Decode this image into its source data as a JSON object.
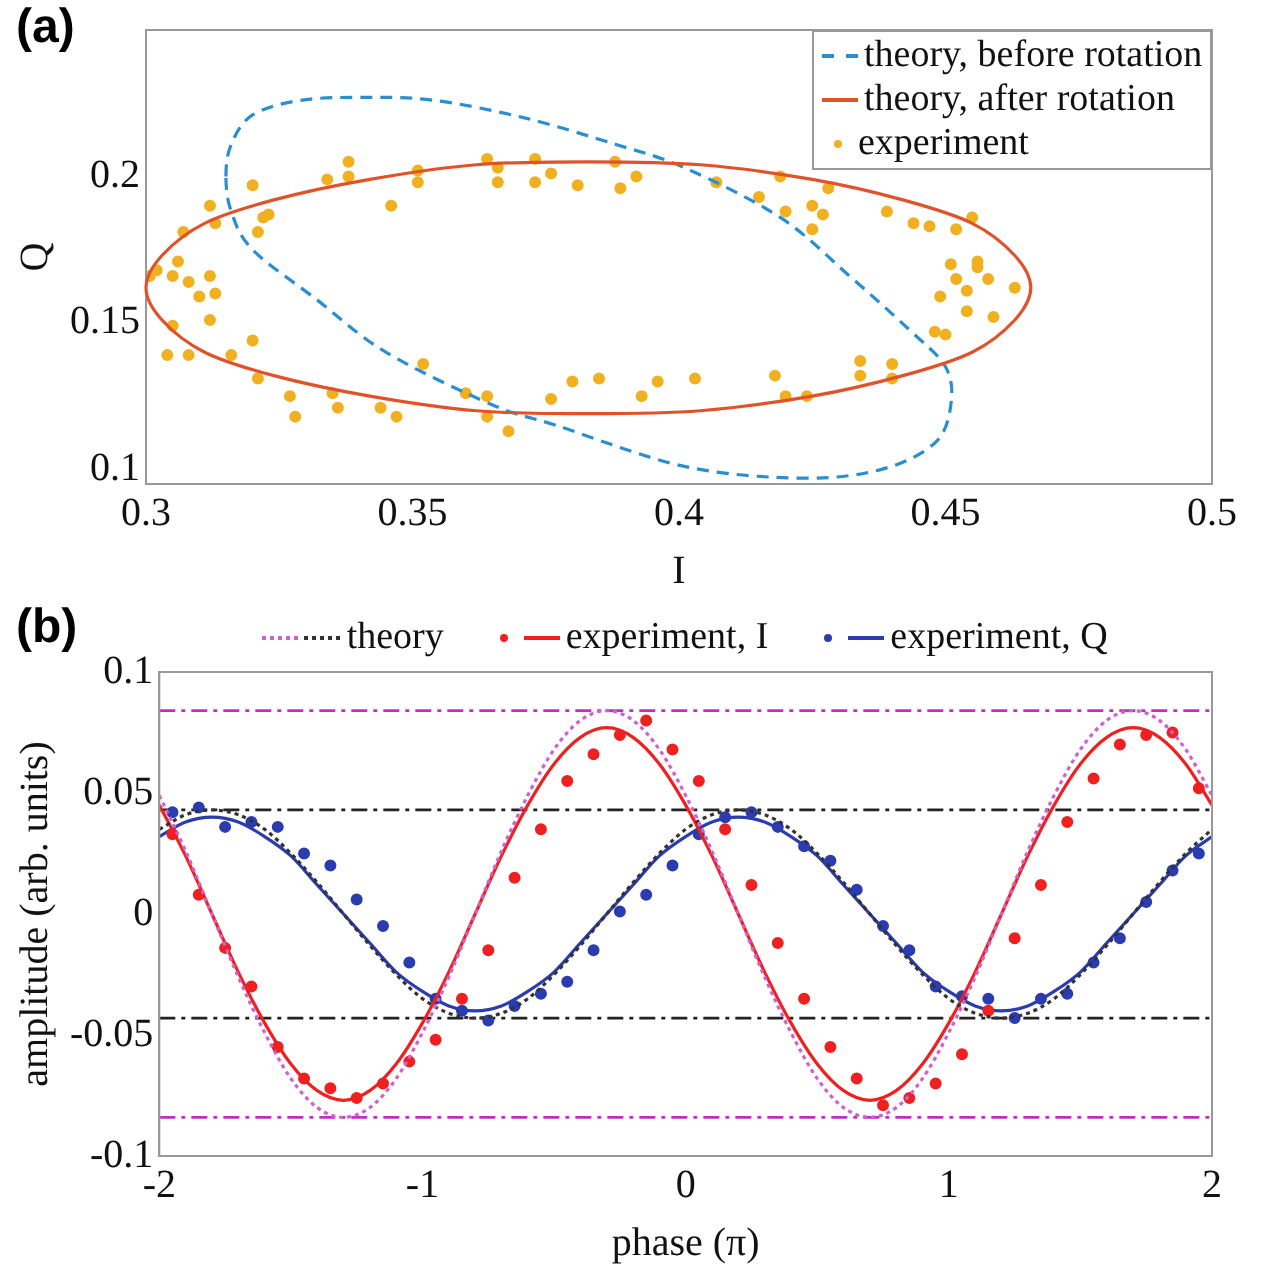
{
  "chart_data": [
    {
      "title": "(a)",
      "type": "scatter",
      "xlabel": "I",
      "ylabel": "Q",
      "annotations": [
        "theory, before rotation",
        "theory, after rotation"
      ],
      "xlim": [
        0.3,
        0.5
      ],
      "xticks": [
        0.3,
        0.35,
        0.4,
        0.45,
        0.5
      ],
      "ylim": [
        0.095,
        0.25
      ],
      "yticks": [
        0.1,
        0.15,
        0.2
      ],
      "legend": "top right",
      "series": [
        {
          "name": "experiment",
          "color": "#f0b020",
          "marker": "circle",
          "x": [
            0.3007,
            0.302,
            0.304,
            0.305,
            0.305,
            0.306,
            0.307,
            0.308,
            0.308,
            0.31,
            0.312,
            0.312,
            0.312,
            0.313,
            0.313,
            0.316,
            0.32,
            0.32,
            0.321,
            0.322,
            0.323,
            0.321,
            0.327,
            0.328,
            0.334,
            0.335,
            0.336,
            0.338,
            0.338,
            0.344,
            0.346,
            0.347,
            0.351,
            0.351,
            0.352,
            0.36,
            0.364,
            0.364,
            0.364,
            0.366,
            0.366,
            0.368,
            0.373,
            0.373,
            0.376,
            0.376,
            0.38,
            0.385,
            0.381,
            0.388,
            0.389,
            0.392,
            0.396,
            0.393,
            0.403,
            0.407,
            0.415,
            0.418,
            0.42,
            0.419,
            0.42,
            0.424,
            0.425,
            0.425,
            0.427,
            0.428,
            0.434,
            0.434,
            0.44,
            0.44,
            0.439,
            0.444,
            0.447,
            0.448,
            0.45,
            0.449,
            0.451,
            0.452,
            0.452,
            0.454,
            0.454,
            0.455,
            0.456,
            0.456,
            0.458,
            0.459,
            0.463
          ],
          "values": [
            0.166,
            0.168,
            0.139,
            0.149,
            0.166,
            0.171,
            0.181,
            0.164,
            0.139,
            0.159,
            0.19,
            0.166,
            0.151,
            0.16,
            0.184,
            0.139,
            0.144,
            0.197,
            0.181,
            0.186,
            0.187,
            0.131,
            0.125,
            0.118,
            0.199,
            0.126,
            0.121,
            0.205,
            0.2,
            0.121,
            0.19,
            0.118,
            0.202,
            0.198,
            0.136,
            0.126,
            0.118,
            0.125,
            0.206,
            0.203,
            0.198,
            0.113,
            0.206,
            0.198,
            0.201,
            0.124,
            0.13,
            0.131,
            0.197,
            0.205,
            0.196,
            0.2,
            0.13,
            0.125,
            0.131,
            0.198,
            0.193,
            0.132,
            0.125,
            0.2,
            0.188,
            0.125,
            0.182,
            0.19,
            0.187,
            0.196,
            0.137,
            0.132,
            0.136,
            0.131,
            0.188,
            0.184,
            0.183,
            0.147,
            0.146,
            0.159,
            0.17,
            0.182,
            0.165,
            0.161,
            0.154,
            0.186,
            0.171,
            0.169,
            0.165,
            0.152,
            0.162
          ]
        }
      ]
    },
    {
      "title": "(b)",
      "type": "line",
      "xlabel": "phase (π)",
      "ylabel": "amplitude (arb. units)",
      "xlim": [
        -2,
        2
      ],
      "xticks": [
        -2,
        -1,
        0,
        1,
        2
      ],
      "ylim": [
        -0.1,
        0.1
      ],
      "yticks": [
        -0.1,
        -0.05,
        0,
        0.05,
        0.1
      ],
      "legend": "top",
      "ref_lines": [
        {
          "axis": "y",
          "value": 0.084,
          "color": "#c030c0",
          "line_style": "dashed"
        },
        {
          "axis": "y",
          "value": -0.084,
          "color": "#c030c0",
          "line_style": "dashed"
        },
        {
          "axis": "y",
          "value": 0.043,
          "color": "#222222",
          "line_style": "dashed"
        },
        {
          "axis": "y",
          "value": -0.043,
          "color": "#222222",
          "line_style": "dashed"
        }
      ],
      "x": [
        -2,
        -1.9,
        -1.8,
        -1.7,
        -1.6,
        -1.5,
        -1.4,
        -1.3,
        -1.2,
        -1.1,
        -1,
        -0.9,
        -0.8,
        -0.7,
        -0.6,
        -0.5,
        -0.4,
        -0.3,
        -0.2,
        -0.1,
        0,
        0.1,
        0.2,
        0.3,
        0.4,
        0.5,
        0.6,
        0.7,
        0.8,
        0.9,
        1,
        1.1,
        1.2,
        1.3,
        1.4,
        1.5,
        1.6,
        1.7,
        1.8,
        1.9,
        2
      ],
      "series": [
        {
          "color": "#d060d0",
          "line_style": "dotted",
          "values": [
            0.049,
            0.026,
            0,
            -0.026,
            -0.049,
            -0.068,
            -0.08,
            -0.084,
            -0.08,
            -0.068,
            -0.049,
            -0.026,
            0,
            0.026,
            0.049,
            0.068,
            0.08,
            0.084,
            0.08,
            0.068,
            0.049,
            0.026,
            0,
            -0.026,
            -0.049,
            -0.068,
            -0.08,
            -0.084,
            -0.08,
            -0.068,
            -0.049,
            -0.026,
            0,
            0.026,
            0.049,
            0.068,
            0.08,
            0.084,
            0.08,
            0.068,
            0.049
          ]
        },
        {
          "name": "theory",
          "color": "#333333",
          "line_style": "dotted",
          "values": [
            0.035,
            0.041,
            0.043,
            0.041,
            0.035,
            0.025,
            0.013,
            0,
            -0.013,
            -0.025,
            -0.035,
            -0.041,
            -0.043,
            -0.041,
            -0.035,
            -0.025,
            -0.013,
            0,
            0.013,
            0.025,
            0.035,
            0.041,
            0.043,
            0.041,
            0.035,
            0.025,
            0.013,
            0,
            -0.013,
            -0.025,
            -0.035,
            -0.041,
            -0.043,
            -0.041,
            -0.035,
            -0.025,
            -0.013,
            0,
            0.013,
            0.025,
            0.035
          ]
        },
        {
          "type": "scatter",
          "color": "#ee2020",
          "marker": "circle",
          "x": [
            -1.95,
            -1.85,
            -1.75,
            -1.65,
            -1.55,
            -1.45,
            -1.35,
            -1.25,
            -1.15,
            -1.05,
            -0.95,
            -0.85,
            -0.75,
            -0.65,
            -0.55,
            -0.45,
            -0.35,
            -0.25,
            -0.15,
            -0.05,
            0.05,
            0.15,
            0.25,
            0.35,
            0.45,
            0.55,
            0.65,
            0.75,
            0.85,
            0.95,
            1.05,
            1.15,
            1.25,
            1.35,
            1.45,
            1.55,
            1.65,
            1.75,
            1.85,
            1.95
          ],
          "values": [
            0.033,
            0.008,
            -0.014,
            -0.03,
            -0.055,
            -0.068,
            -0.072,
            -0.076,
            -0.07,
            -0.061,
            -0.052,
            -0.035,
            -0.015,
            0.015,
            0.035,
            0.055,
            0.066,
            0.074,
            0.08,
            0.068,
            0.055,
            0.035,
            0.012,
            -0.012,
            -0.035,
            -0.055,
            -0.068,
            -0.079,
            -0.076,
            -0.07,
            -0.058,
            -0.04,
            -0.01,
            0.012,
            0.038,
            0.056,
            0.07,
            0.074,
            0.075,
            0.052
          ]
        },
        {
          "name": "experiment, I",
          "color": "#ee2020",
          "line_style": "solid",
          "values": [
            0.045,
            0.024,
            0,
            -0.024,
            -0.045,
            -0.062,
            -0.073,
            -0.077,
            -0.073,
            -0.062,
            -0.045,
            -0.024,
            0,
            0.024,
            0.045,
            0.062,
            0.073,
            0.077,
            0.073,
            0.062,
            0.045,
            0.024,
            0,
            -0.024,
            -0.045,
            -0.062,
            -0.073,
            -0.077,
            -0.073,
            -0.062,
            -0.045,
            -0.024,
            0,
            0.024,
            0.045,
            0.062,
            0.073,
            0.077,
            0.073,
            0.062,
            0.045
          ]
        },
        {
          "type": "scatter",
          "color": "#2a3cb0",
          "marker": "circle",
          "x": [
            -1.95,
            -1.85,
            -1.75,
            -1.65,
            -1.55,
            -1.45,
            -1.35,
            -1.25,
            -1.15,
            -1.05,
            -0.95,
            -0.85,
            -0.75,
            -0.65,
            -0.55,
            -0.45,
            -0.35,
            -0.25,
            -0.15,
            -0.05,
            0.05,
            0.15,
            0.25,
            0.35,
            0.45,
            0.55,
            0.65,
            0.75,
            0.85,
            0.95,
            1.05,
            1.15,
            1.25,
            1.35,
            1.45,
            1.55,
            1.65,
            1.75,
            1.85,
            1.95
          ],
          "values": [
            0.042,
            0.044,
            0.036,
            0.038,
            0.036,
            0.025,
            0.02,
            0.006,
            -0.005,
            -0.02,
            -0.035,
            -0.04,
            -0.044,
            -0.038,
            -0.033,
            -0.028,
            -0.015,
            0.001,
            0.008,
            0.02,
            0.033,
            0.04,
            0.042,
            0.036,
            0.028,
            0.022,
            0.01,
            -0.005,
            -0.015,
            -0.03,
            -0.034,
            -0.035,
            -0.043,
            -0.035,
            -0.033,
            -0.02,
            -0.01,
            0.005,
            0.018,
            0.025
          ]
        },
        {
          "name": "experiment, Q",
          "color": "#2a3cb0",
          "line_style": "solid",
          "values": [
            0.032,
            0.038,
            0.04,
            0.038,
            0.032,
            0.024,
            0.012,
            0,
            -0.012,
            -0.024,
            -0.032,
            -0.038,
            -0.04,
            -0.038,
            -0.032,
            -0.024,
            -0.012,
            0,
            0.012,
            0.024,
            0.032,
            0.038,
            0.04,
            0.038,
            0.032,
            0.024,
            0.012,
            0,
            -0.012,
            -0.024,
            -0.032,
            -0.038,
            -0.04,
            -0.038,
            -0.032,
            -0.024,
            -0.012,
            0,
            0.012,
            0.024,
            0.032
          ]
        }
      ]
    }
  ]
}
